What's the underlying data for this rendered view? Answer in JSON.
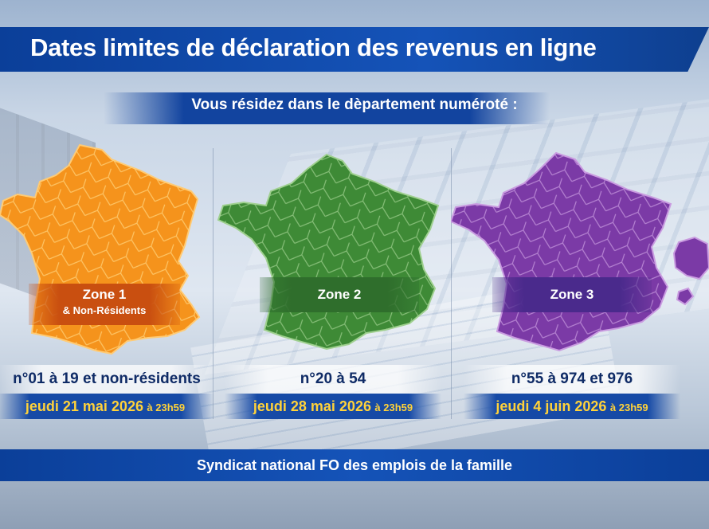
{
  "title": "Dates limites de déclaration des revenus en ligne",
  "subtitle": "Vous résidez dans le dèpartement numéroté :",
  "zones": [
    {
      "name": "Zone 1",
      "note": "& Non-Résidents",
      "departments": "n°01 à 19 et non-résidents",
      "date": "jeudi 21 mai 2026",
      "time": "à 23h59",
      "color": "#f5931c"
    },
    {
      "name": "Zone 2",
      "note": "",
      "departments": "n°20 à 54",
      "date": "jeudi 28 mai 2026",
      "time": "à 23h59",
      "color": "#3e8a36"
    },
    {
      "name": "Zone 3",
      "note": "",
      "departments": "n°55 à 974 et 976",
      "date": "jeudi 4 juin 2026",
      "time": "à 23h59",
      "color": "#7b3aa6"
    }
  ],
  "footer": "Syndicat national FO des emplois de la famille"
}
